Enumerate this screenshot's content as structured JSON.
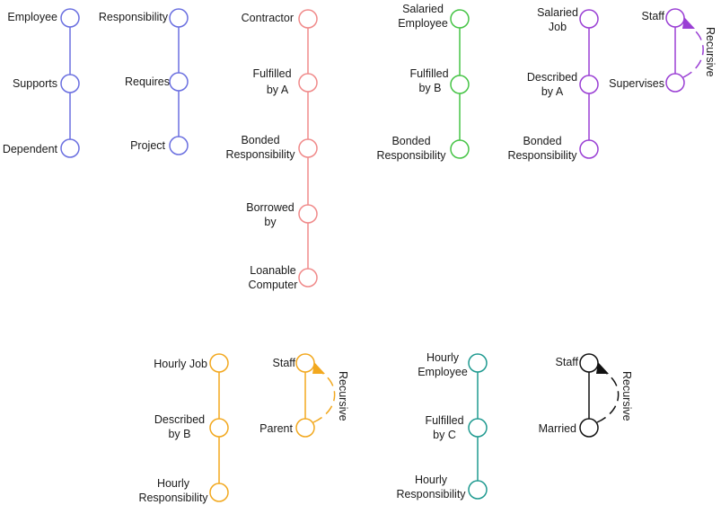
{
  "colors": {
    "blue": "#6a6fe0",
    "red": "#f08a8a",
    "green": "#46c446",
    "purple": "#9a3fd4",
    "orange": "#f2a81e",
    "teal": "#1f9a90",
    "black": "#111111"
  },
  "chains": {
    "employee": [
      "Employee",
      "Supports",
      "Dependent"
    ],
    "responsibility": [
      "Responsibility",
      "Requires",
      "Project"
    ],
    "contractor": [
      "Contractor",
      "Fulfilled",
      "by A",
      "Bonded",
      "Responsibility",
      "Borrowed",
      "by",
      "Loanable",
      "Computer"
    ],
    "salaried_employee": [
      "Salaried",
      "Employee",
      "Fulfilled",
      "by B",
      "Bonded",
      "Responsibility"
    ],
    "salaried_job": [
      "Salaried",
      "Job",
      "Described",
      "by A",
      "Bonded",
      "Responsibility"
    ],
    "hourly_job": [
      "Hourly Job",
      "Described",
      "by B",
      "Hourly",
      "Responsibility"
    ],
    "hourly_employee": [
      "Hourly",
      "Employee",
      "Fulfilled",
      "by C",
      "Hourly",
      "Responsibility"
    ]
  },
  "recursive": {
    "supervises": {
      "top": "Staff",
      "bottom": "Supervises",
      "label": "Recursive"
    },
    "parent": {
      "top": "Staff",
      "bottom": "Parent",
      "label": "Recursive"
    },
    "married": {
      "top": "Staff",
      "bottom": "Married",
      "label": "Recursive"
    }
  }
}
